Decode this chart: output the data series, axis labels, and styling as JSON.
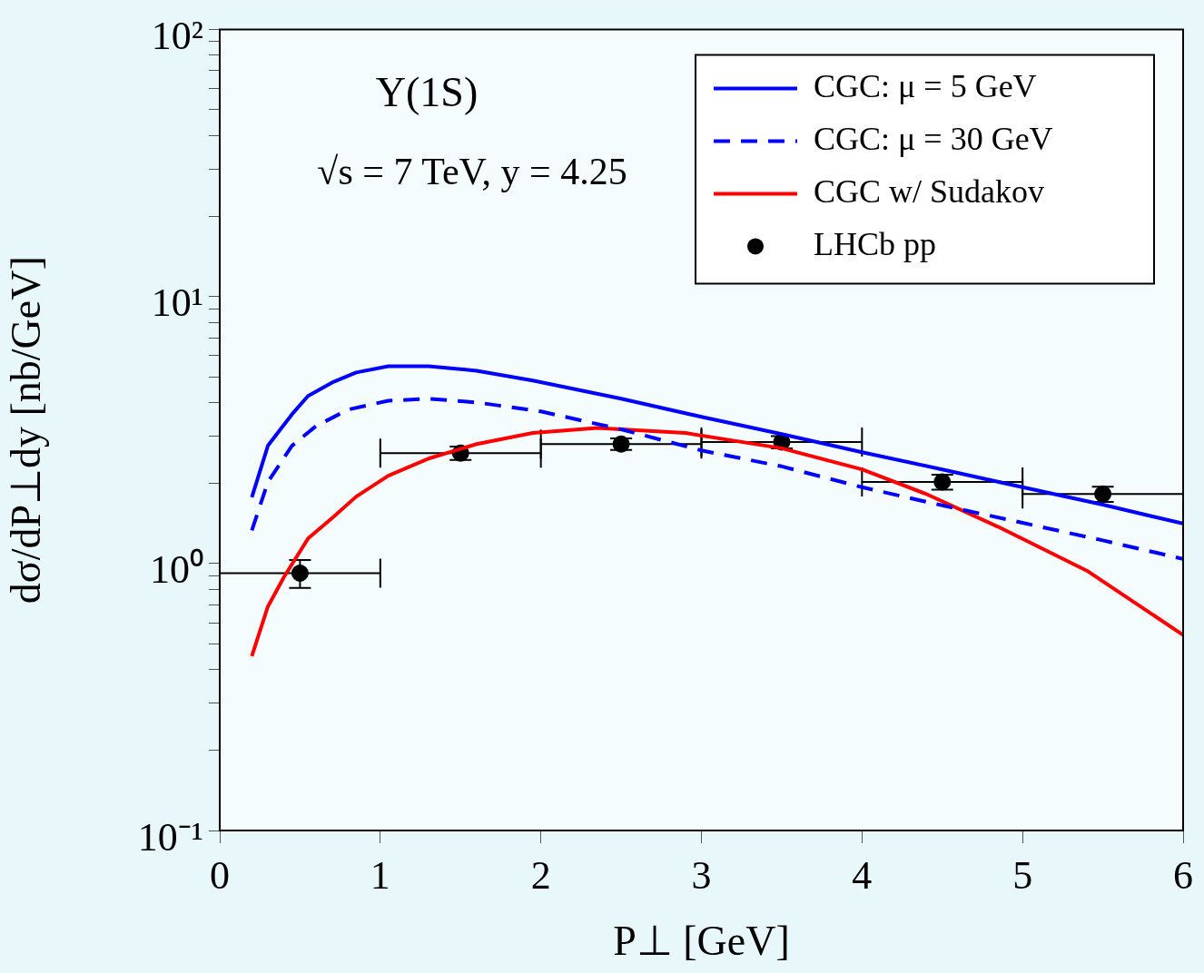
{
  "chart_data": {
    "type": "line",
    "xlabel": "P⊥ [GeV]",
    "ylabel": "dσ/dP⊥dy [nb/GeV]",
    "annotations": [
      "Υ(1S)",
      "√s = 7 TeV, y = 4.25"
    ],
    "log": "y",
    "grid": false,
    "legend": "top right",
    "xlim": [
      0,
      6
    ],
    "xticks": [
      0,
      1,
      2,
      3,
      4,
      5,
      6
    ],
    "ylim": [
      0.1,
      100
    ],
    "yticks": [
      {
        "value": 0.1,
        "label": "10⁻¹"
      },
      {
        "value": 0.2,
        "label": null
      },
      {
        "value": 0.3,
        "label": null
      },
      {
        "value": 0.4,
        "label": null
      },
      {
        "value": 0.5,
        "label": null
      },
      {
        "value": 0.6,
        "label": null
      },
      {
        "value": 0.7,
        "label": null
      },
      {
        "value": 0.8,
        "label": null
      },
      {
        "value": 0.9,
        "label": null
      },
      {
        "value": 1,
        "label": "10⁰"
      },
      {
        "value": 2,
        "label": null
      },
      {
        "value": 3,
        "label": null
      },
      {
        "value": 4,
        "label": null
      },
      {
        "value": 5,
        "label": null
      },
      {
        "value": 6,
        "label": null
      },
      {
        "value": 7,
        "label": null
      },
      {
        "value": 8,
        "label": null
      },
      {
        "value": 9,
        "label": null
      },
      {
        "value": 10,
        "label": "10¹"
      },
      {
        "value": 20,
        "label": null
      },
      {
        "value": 30,
        "label": null
      },
      {
        "value": 40,
        "label": null
      },
      {
        "value": 50,
        "label": null
      },
      {
        "value": 60,
        "label": null
      },
      {
        "value": 70,
        "label": null
      },
      {
        "value": 80,
        "label": null
      },
      {
        "value": 90,
        "label": null
      },
      {
        "value": 100,
        "label": "10²"
      }
    ],
    "series": [
      {
        "name": "CGC: μ = 5 GeV",
        "line_style": "solid",
        "color": "#0000ff",
        "x": [
          0.2,
          0.3,
          0.45,
          0.55,
          0.7,
          0.85,
          1.05,
          1.3,
          1.6,
          1.95,
          2.5,
          3,
          3.5,
          4,
          4.5,
          5,
          5.5,
          6
        ],
        "values": [
          1.77,
          2.76,
          3.62,
          4.24,
          4.76,
          5.19,
          5.48,
          5.48,
          5.27,
          4.84,
          4.14,
          3.54,
          3.05,
          2.61,
          2.25,
          1.93,
          1.66,
          1.41
        ]
      },
      {
        "name": "CGC: μ = 30 GeV",
        "line_style": "dashed",
        "color": "#0000ff",
        "x": [
          0.2,
          0.3,
          0.45,
          0.6,
          0.8,
          1.05,
          1.3,
          1.6,
          2,
          2.5,
          3,
          3.5,
          4,
          4.5,
          5,
          5.5,
          6
        ],
        "values": [
          1.33,
          2.02,
          2.76,
          3.27,
          3.77,
          4.07,
          4.14,
          4.01,
          3.71,
          3.18,
          2.65,
          2.31,
          1.93,
          1.65,
          1.42,
          1.22,
          1.04
        ]
      },
      {
        "name": "CGC w/ Sudakov",
        "line_style": "solid",
        "color": "#ff0000",
        "x": [
          0.2,
          0.3,
          0.4,
          0.55,
          0.7,
          0.85,
          1.05,
          1.3,
          1.6,
          1.95,
          2.35,
          2.9,
          3.5,
          4,
          4.4,
          4.85,
          5.4,
          6
        ],
        "values": [
          0.45,
          0.69,
          0.89,
          1.24,
          1.48,
          1.78,
          2.13,
          2.47,
          2.8,
          3.08,
          3.22,
          3.08,
          2.7,
          2.25,
          1.82,
          1.37,
          0.94,
          0.54
        ]
      },
      {
        "name": "LHCb pp",
        "type": "scatter",
        "marker": "circle",
        "color": "#000000",
        "x": [
          0.5,
          1.5,
          2.5,
          3.5,
          4.5,
          5.5
        ],
        "values": [
          0.92,
          2.59,
          2.8,
          2.85,
          2.02,
          1.82
        ],
        "errors": [
          0.11,
          0.15,
          0.14,
          0.15,
          0.13,
          0.12
        ],
        "xerrors": [
          0.5,
          0.5,
          0.5,
          0.5,
          0.5,
          0.5
        ]
      }
    ]
  }
}
